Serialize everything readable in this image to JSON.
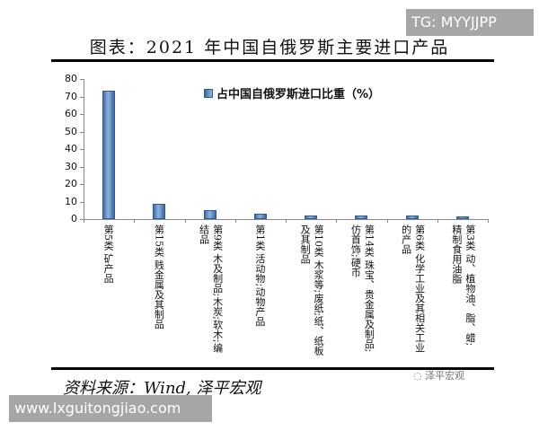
{
  "title": "图表：2021 年中国自俄罗斯主要进口产品",
  "watermarks": {
    "top": "TG: MYYJJPP",
    "bottom": "www.lxguitongjiao.com"
  },
  "source": "资料来源：Wind, 泽平宏观",
  "brand": "泽平宏观",
  "legend": "占中国自俄罗斯进口比重（%）",
  "chart_data": {
    "type": "bar",
    "title": "图表：2021 年中国自俄罗斯主要进口产品",
    "xlabel": "",
    "ylabel": "",
    "ylim": [
      0,
      80
    ],
    "yticks": [
      0,
      10,
      20,
      30,
      40,
      50,
      60,
      70,
      80
    ],
    "grid": false,
    "legend_position": "top-right inside",
    "categories": [
      [
        "第5类 矿产品"
      ],
      [
        "第15类 贱金属及其制品"
      ],
      [
        "第9类 木及制品;木炭;软木;编",
        "结品"
      ],
      [
        "第1类 活动物;动物产品"
      ],
      [
        "第10类 木浆等;废纸;纸、纸板",
        "及其制品"
      ],
      [
        "第14类 珠宝、贵金属及制品;",
        "仿首饰;硬币"
      ],
      [
        "第6类 化学工业及其相关工业",
        "的产品"
      ],
      [
        "第3类 动、植物油、脂、蜡;",
        "精制食用油脂"
      ]
    ],
    "series": [
      {
        "name": "占中国自俄罗斯进口比重（%）",
        "values": [
          73.2,
          8.9,
          5.1,
          3.2,
          2.1,
          2.1,
          1.9,
          1.4
        ]
      }
    ]
  }
}
